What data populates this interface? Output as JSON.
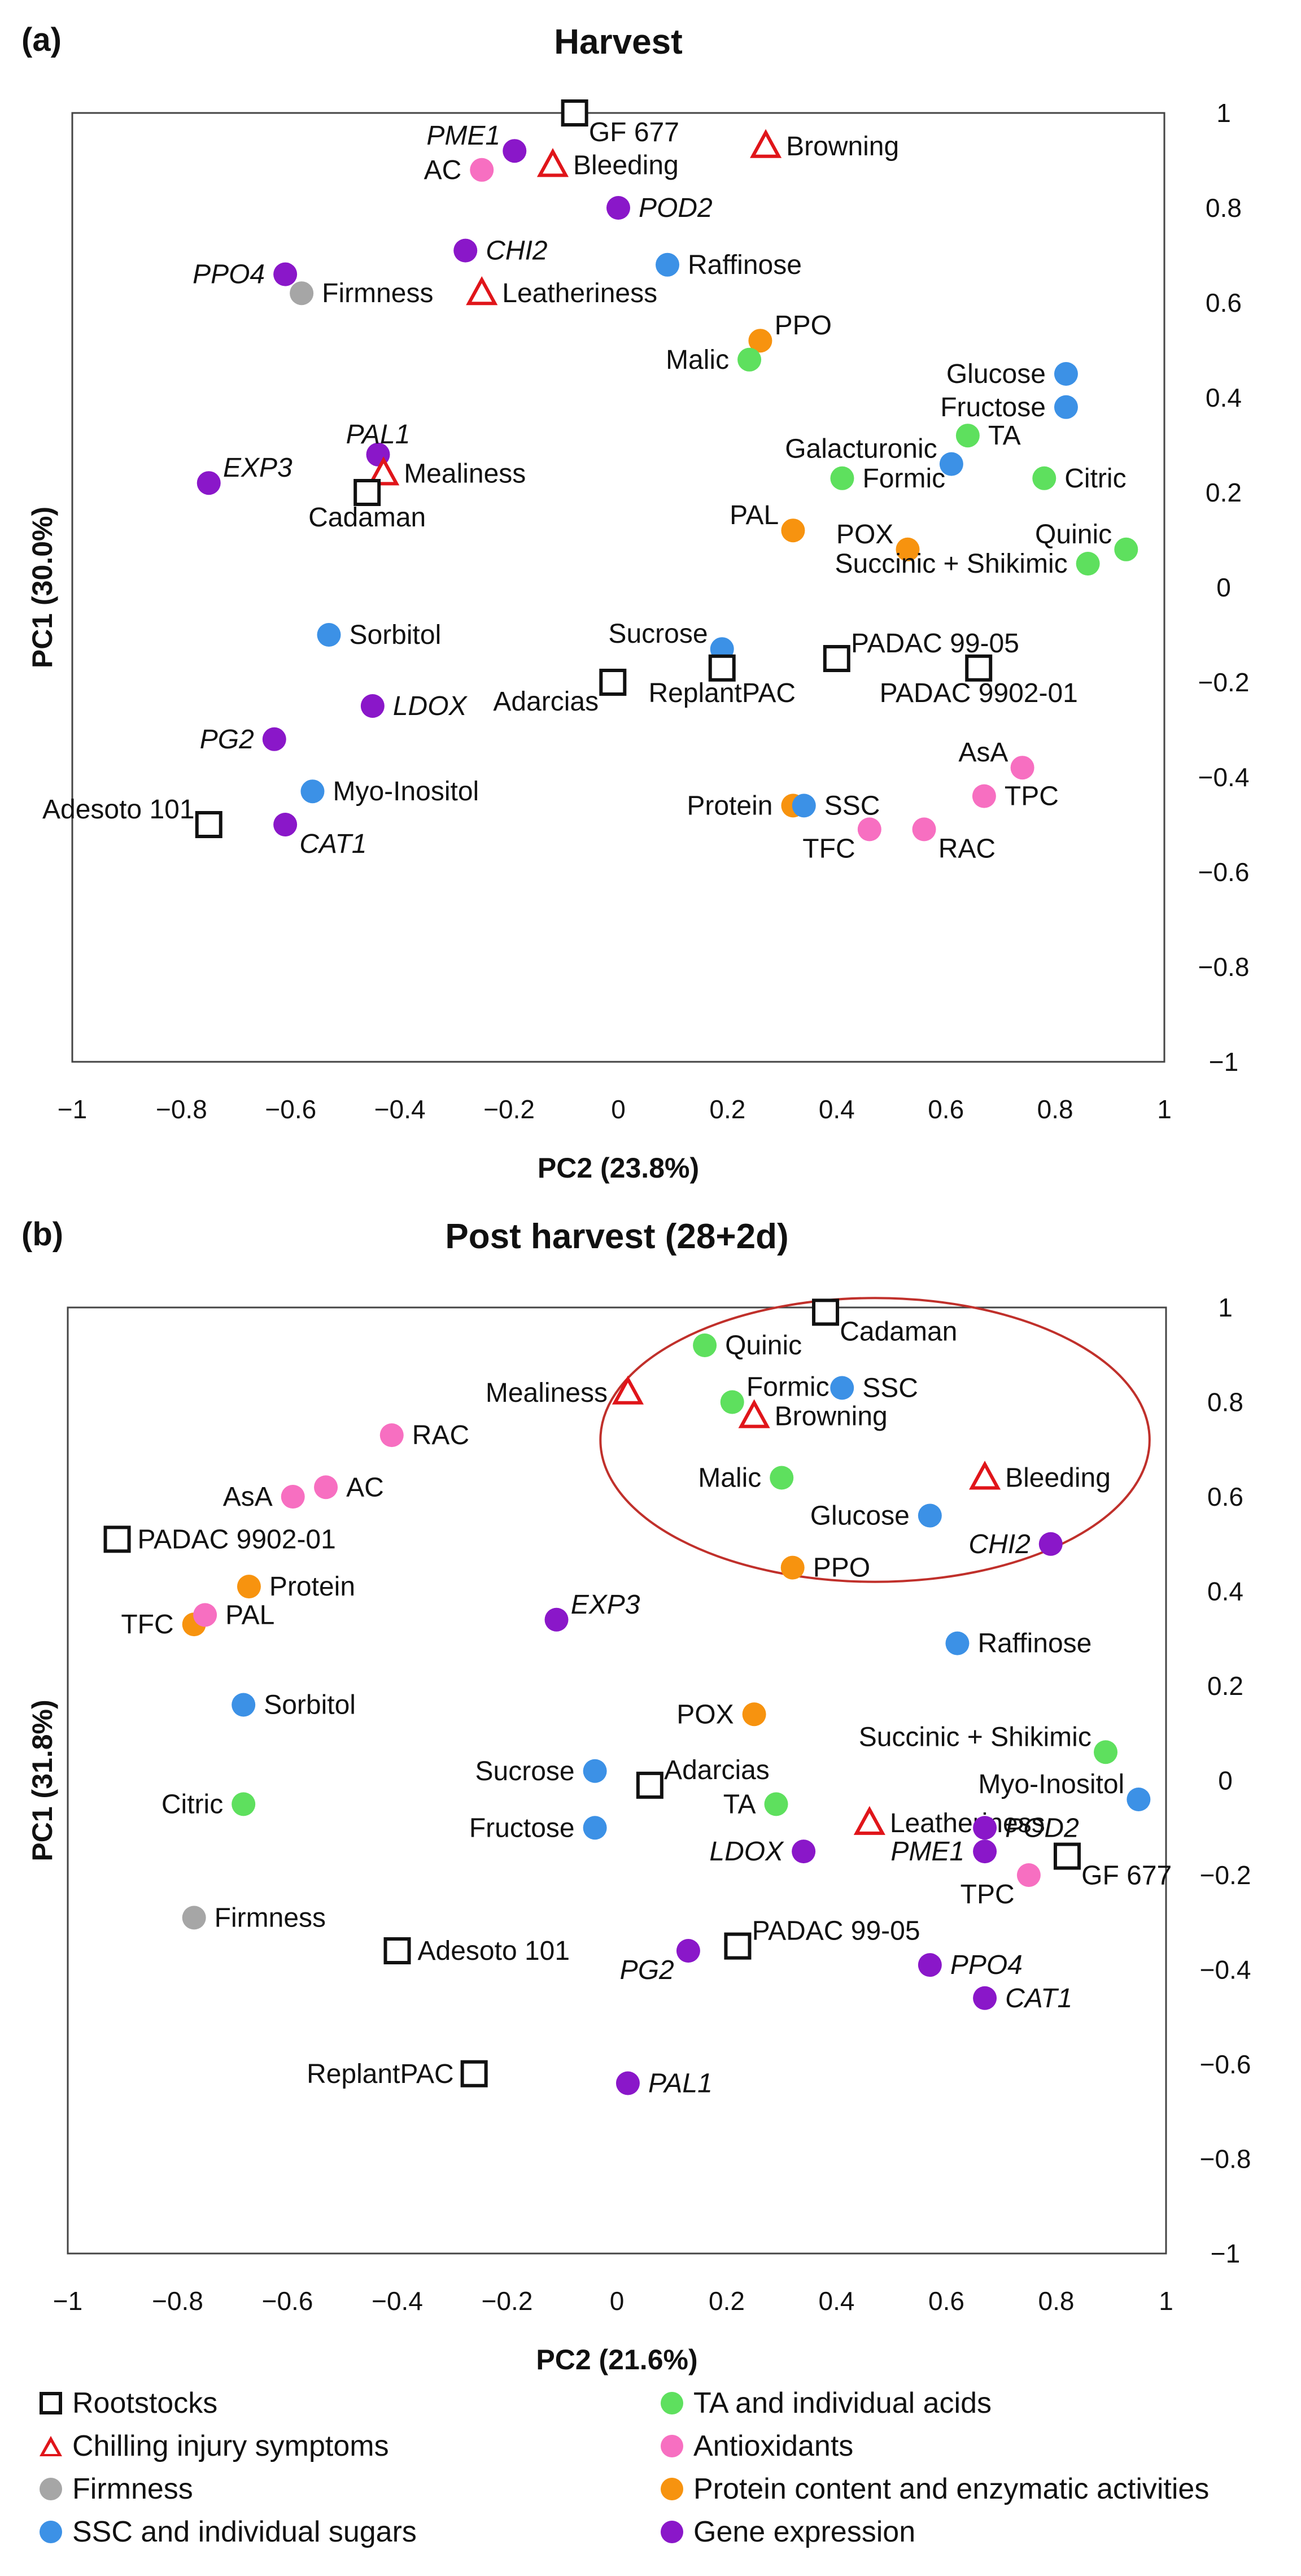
{
  "chart_data": [
    {
      "type": "scatter",
      "panel_label": "(a)",
      "title": "Harvest",
      "xlabel": "PC2 (23.8%)",
      "ylabel": "PC1 (30.0%)",
      "xlim": [
        -1,
        1
      ],
      "ylim": [
        -1,
        1
      ],
      "xticks": [
        "−1",
        "−0.8",
        "−0.6",
        "−0.4",
        "−0.2",
        "0",
        "0.2",
        "0.4",
        "0.6",
        "0.8",
        "1"
      ],
      "yticks": [
        "1",
        "0.8",
        "0.6",
        "0.4",
        "0.2",
        "0",
        "−0.2",
        "−0.4",
        "−0.6",
        "−0.8",
        "−1"
      ],
      "points": [
        {
          "label": "GF 677",
          "group": "rootstock",
          "x": -0.08,
          "y": 1.0,
          "pos": "br"
        },
        {
          "label": "Browning",
          "group": "chilling",
          "x": 0.27,
          "y": 0.93,
          "pos": "r"
        },
        {
          "label": "PME1",
          "group": "gene",
          "x": -0.19,
          "y": 0.92,
          "pos": "tl",
          "italic": true
        },
        {
          "label": "Bleeding",
          "group": "chilling",
          "x": -0.12,
          "y": 0.89,
          "pos": "r"
        },
        {
          "label": "AC",
          "group": "antioxidant",
          "x": -0.25,
          "y": 0.88,
          "pos": "l"
        },
        {
          "label": "POD2",
          "group": "gene",
          "x": 0.0,
          "y": 0.8,
          "pos": "r",
          "italic": true
        },
        {
          "label": "CHI2",
          "group": "gene",
          "x": -0.28,
          "y": 0.71,
          "pos": "r",
          "italic": true
        },
        {
          "label": "Raffinose",
          "group": "sugar",
          "x": 0.09,
          "y": 0.68,
          "pos": "r"
        },
        {
          "label": "PPO4",
          "group": "gene",
          "x": -0.61,
          "y": 0.66,
          "pos": "l",
          "italic": true
        },
        {
          "label": "Leatheriness",
          "group": "chilling",
          "x": -0.25,
          "y": 0.62,
          "pos": "r"
        },
        {
          "label": "Firmness",
          "group": "firmness",
          "x": -0.58,
          "y": 0.62,
          "pos": "r"
        },
        {
          "label": "PPO",
          "group": "enzyme",
          "x": 0.26,
          "y": 0.52,
          "pos": "tr"
        },
        {
          "label": "Malic",
          "group": "acid",
          "x": 0.24,
          "y": 0.48,
          "pos": "l"
        },
        {
          "label": "Glucose",
          "group": "sugar",
          "x": 0.82,
          "y": 0.45,
          "pos": "l"
        },
        {
          "label": "Fructose",
          "group": "sugar",
          "x": 0.82,
          "y": 0.38,
          "pos": "l"
        },
        {
          "label": "TA",
          "group": "acid",
          "x": 0.64,
          "y": 0.32,
          "pos": "r"
        },
        {
          "label": "PAL1",
          "group": "gene",
          "x": -0.44,
          "y": 0.28,
          "pos": "t",
          "italic": true
        },
        {
          "label": "Galacturonic",
          "group": "sugar",
          "x": 0.61,
          "y": 0.26,
          "pos": "tl"
        },
        {
          "label": "EXP3",
          "group": "gene",
          "x": -0.75,
          "y": 0.22,
          "pos": "tr",
          "italic": true
        },
        {
          "label": "Mealiness",
          "group": "chilling",
          "x": -0.43,
          "y": 0.24,
          "pos": "r"
        },
        {
          "label": "Formic",
          "group": "acid",
          "x": 0.41,
          "y": 0.23,
          "pos": "r"
        },
        {
          "label": "Citric",
          "group": "acid",
          "x": 0.78,
          "y": 0.23,
          "pos": "r"
        },
        {
          "label": "Cadaman",
          "group": "rootstock",
          "x": -0.46,
          "y": 0.2,
          "pos": "b"
        },
        {
          "label": "PAL",
          "group": "enzyme",
          "x": 0.32,
          "y": 0.12,
          "pos": "tl"
        },
        {
          "label": "POX",
          "group": "enzyme",
          "x": 0.53,
          "y": 0.08,
          "pos": "tl"
        },
        {
          "label": "Quinic",
          "group": "acid",
          "x": 0.93,
          "y": 0.08,
          "pos": "tl"
        },
        {
          "label": "Succinic + Shikimic",
          "group": "acid",
          "x": 0.86,
          "y": 0.05,
          "pos": "l"
        },
        {
          "label": "Sorbitol",
          "group": "sugar",
          "x": -0.53,
          "y": -0.1,
          "pos": "r"
        },
        {
          "label": "Sucrose",
          "group": "sugar",
          "x": 0.19,
          "y": -0.13,
          "pos": "tl"
        },
        {
          "label": "PADAC 99-05",
          "group": "rootstock",
          "x": 0.4,
          "y": -0.15,
          "pos": "tr"
        },
        {
          "label": "ReplantPAC",
          "group": "rootstock",
          "x": 0.19,
          "y": -0.17,
          "pos": "b"
        },
        {
          "label": "PADAC 9902-01",
          "group": "rootstock",
          "x": 0.66,
          "y": -0.17,
          "pos": "b"
        },
        {
          "label": "Adarcias",
          "group": "rootstock",
          "x": -0.01,
          "y": -0.2,
          "pos": "bl"
        },
        {
          "label": "LDOX",
          "group": "gene",
          "x": -0.45,
          "y": -0.25,
          "pos": "r",
          "italic": true
        },
        {
          "label": "PG2",
          "group": "gene",
          "x": -0.63,
          "y": -0.32,
          "pos": "l",
          "italic": true
        },
        {
          "label": "AsA",
          "group": "antioxidant",
          "x": 0.74,
          "y": -0.38,
          "pos": "tl"
        },
        {
          "label": "Myo-Inositol",
          "group": "sugar",
          "x": -0.56,
          "y": -0.43,
          "pos": "r"
        },
        {
          "label": "TPC",
          "group": "antioxidant",
          "x": 0.67,
          "y": -0.44,
          "pos": "r"
        },
        {
          "label": "Protein",
          "group": "enzyme",
          "x": 0.32,
          "y": -0.46,
          "pos": "l"
        },
        {
          "label": "SSC",
          "group": "sugar",
          "x": 0.34,
          "y": -0.46,
          "pos": "r"
        },
        {
          "label": "Adesoto 101",
          "group": "rootstock",
          "x": -0.75,
          "y": -0.5,
          "pos": "tl"
        },
        {
          "label": "CAT1",
          "group": "gene",
          "x": -0.61,
          "y": -0.5,
          "pos": "br",
          "italic": true
        },
        {
          "label": "TFC",
          "group": "antioxidant",
          "x": 0.46,
          "y": -0.51,
          "pos": "bl"
        },
        {
          "label": "RAC",
          "group": "antioxidant",
          "x": 0.56,
          "y": -0.51,
          "pos": "br"
        }
      ]
    },
    {
      "type": "scatter",
      "panel_label": "(b)",
      "title": "Post harvest (28+2d)",
      "xlabel": "PC2 (21.6%)",
      "ylabel": "PC1 (31.8%)",
      "xlim": [
        -1,
        1
      ],
      "ylim": [
        -1,
        1
      ],
      "xticks": [
        "−1",
        "−0.8",
        "−0.6",
        "−0.4",
        "−0.2",
        "0",
        "0.2",
        "0.4",
        "0.6",
        "0.8",
        "1"
      ],
      "yticks": [
        "1",
        "0.8",
        "0.6",
        "0.4",
        "0.2",
        "0",
        "−0.2",
        "−0.4",
        "−0.6",
        "−0.8",
        "−1"
      ],
      "ellipse": {
        "cx": 0.47,
        "cy": 0.72,
        "rx": 0.5,
        "ry": 0.3
      },
      "points": [
        {
          "label": "Cadaman",
          "group": "rootstock",
          "x": 0.38,
          "y": 0.99,
          "pos": "br"
        },
        {
          "label": "Quinic",
          "group": "acid",
          "x": 0.16,
          "y": 0.92,
          "pos": "r"
        },
        {
          "label": "Mealiness",
          "group": "chilling",
          "x": 0.02,
          "y": 0.82,
          "pos": "l"
        },
        {
          "label": "Formic",
          "group": "acid",
          "x": 0.21,
          "y": 0.8,
          "pos": "tr"
        },
        {
          "label": "SSC",
          "group": "sugar",
          "x": 0.41,
          "y": 0.83,
          "pos": "r"
        },
        {
          "label": "Browning",
          "group": "chilling",
          "x": 0.25,
          "y": 0.77,
          "pos": "r"
        },
        {
          "label": "RAC",
          "group": "antioxidant",
          "x": -0.41,
          "y": 0.73,
          "pos": "r"
        },
        {
          "label": "Bleeding",
          "group": "chilling",
          "x": 0.67,
          "y": 0.64,
          "pos": "r"
        },
        {
          "label": "Malic",
          "group": "acid",
          "x": 0.3,
          "y": 0.64,
          "pos": "l"
        },
        {
          "label": "AC",
          "group": "antioxidant",
          "x": -0.53,
          "y": 0.62,
          "pos": "r"
        },
        {
          "label": "AsA",
          "group": "antioxidant",
          "x": -0.59,
          "y": 0.6,
          "pos": "l"
        },
        {
          "label": "Glucose",
          "group": "sugar",
          "x": 0.57,
          "y": 0.56,
          "pos": "l"
        },
        {
          "label": "PADAC 9902-01",
          "group": "rootstock",
          "x": -0.91,
          "y": 0.51,
          "pos": "r"
        },
        {
          "label": "CHI2",
          "group": "gene",
          "x": 0.79,
          "y": 0.5,
          "pos": "l",
          "italic": true
        },
        {
          "label": "PPO",
          "group": "enzyme",
          "x": 0.32,
          "y": 0.45,
          "pos": "r"
        },
        {
          "label": "Protein",
          "group": "enzyme",
          "x": -0.67,
          "y": 0.41,
          "pos": "r"
        },
        {
          "label": "TFC",
          "group": "enzyme",
          "x": -0.77,
          "y": 0.33,
          "pos": "l"
        },
        {
          "label": "PAL",
          "group": "antioxidant",
          "x": -0.75,
          "y": 0.35,
          "pos": "r"
        },
        {
          "label": "EXP3",
          "group": "gene",
          "x": -0.11,
          "y": 0.34,
          "pos": "tr",
          "italic": true
        },
        {
          "label": "Raffinose",
          "group": "sugar",
          "x": 0.62,
          "y": 0.29,
          "pos": "r"
        },
        {
          "label": "Sorbitol",
          "group": "sugar",
          "x": -0.68,
          "y": 0.16,
          "pos": "r"
        },
        {
          "label": "POX",
          "group": "enzyme",
          "x": 0.25,
          "y": 0.14,
          "pos": "l"
        },
        {
          "label": "Succinic + Shikimic",
          "group": "acid",
          "x": 0.89,
          "y": 0.06,
          "pos": "tl"
        },
        {
          "label": "Sucrose",
          "group": "sugar",
          "x": -0.04,
          "y": 0.02,
          "pos": "l"
        },
        {
          "label": "Adarcias",
          "group": "rootstock",
          "x": 0.06,
          "y": -0.01,
          "pos": "tr"
        },
        {
          "label": "Myo-Inositol",
          "group": "sugar",
          "x": 0.95,
          "y": -0.04,
          "pos": "tl"
        },
        {
          "label": "Citric",
          "group": "acid",
          "x": -0.68,
          "y": -0.05,
          "pos": "l"
        },
        {
          "label": "TA",
          "group": "acid",
          "x": 0.29,
          "y": -0.05,
          "pos": "l"
        },
        {
          "label": "Leatheriness",
          "group": "chilling",
          "x": 0.46,
          "y": -0.09,
          "pos": "r"
        },
        {
          "label": "POD2",
          "group": "gene",
          "x": 0.67,
          "y": -0.1,
          "pos": "r",
          "italic": true
        },
        {
          "label": "Fructose",
          "group": "sugar",
          "x": -0.04,
          "y": -0.1,
          "pos": "l"
        },
        {
          "label": "LDOX",
          "group": "gene",
          "x": 0.34,
          "y": -0.15,
          "pos": "l",
          "italic": true
        },
        {
          "label": "PME1",
          "group": "gene",
          "x": 0.67,
          "y": -0.15,
          "pos": "l",
          "italic": true
        },
        {
          "label": "GF 677",
          "group": "rootstock",
          "x": 0.82,
          "y": -0.16,
          "pos": "br"
        },
        {
          "label": "TPC",
          "group": "antioxidant",
          "x": 0.75,
          "y": -0.2,
          "pos": "bl"
        },
        {
          "label": "Firmness",
          "group": "firmness",
          "x": -0.77,
          "y": -0.29,
          "pos": "r"
        },
        {
          "label": "PADAC 99-05",
          "group": "rootstock",
          "x": 0.22,
          "y": -0.35,
          "pos": "tr"
        },
        {
          "label": "Adesoto 101",
          "group": "rootstock",
          "x": -0.4,
          "y": -0.36,
          "pos": "r"
        },
        {
          "label": "PG2",
          "group": "gene",
          "x": 0.13,
          "y": -0.36,
          "pos": "bl",
          "italic": true
        },
        {
          "label": "PPO4",
          "group": "gene",
          "x": 0.57,
          "y": -0.39,
          "pos": "r",
          "italic": true
        },
        {
          "label": "CAT1",
          "group": "gene",
          "x": 0.67,
          "y": -0.46,
          "pos": "r",
          "italic": true
        },
        {
          "label": "ReplantPAC",
          "group": "rootstock",
          "x": -0.26,
          "y": -0.62,
          "pos": "l"
        },
        {
          "label": "PAL1",
          "group": "gene",
          "x": 0.02,
          "y": -0.64,
          "pos": "r",
          "italic": true
        }
      ]
    }
  ],
  "legend": [
    {
      "group": "rootstock",
      "label": "Rootstocks"
    },
    {
      "group": "chilling",
      "label": "Chilling injury symptoms"
    },
    {
      "group": "firmness",
      "label": "Firmness"
    },
    {
      "group": "sugar",
      "label": "SSC and individual sugars"
    },
    {
      "group": "acid",
      "label": "TA and individual acids"
    },
    {
      "group": "antioxidant",
      "label": "Antioxidants"
    },
    {
      "group": "enzyme",
      "label": "Protein content and enzymatic activities"
    },
    {
      "group": "gene",
      "label": "Gene expression"
    }
  ],
  "colors": {
    "rootstock": "#111111",
    "chilling": "#e0151a",
    "firmness": "#a6a6a6",
    "sugar": "#3c91e6",
    "acid": "#5ee05e",
    "antioxidant": "#f76fc1",
    "enzyme": "#f7930f",
    "gene": "#8a17c9",
    "axis": "#444444",
    "ellipse": "#c0302b"
  }
}
